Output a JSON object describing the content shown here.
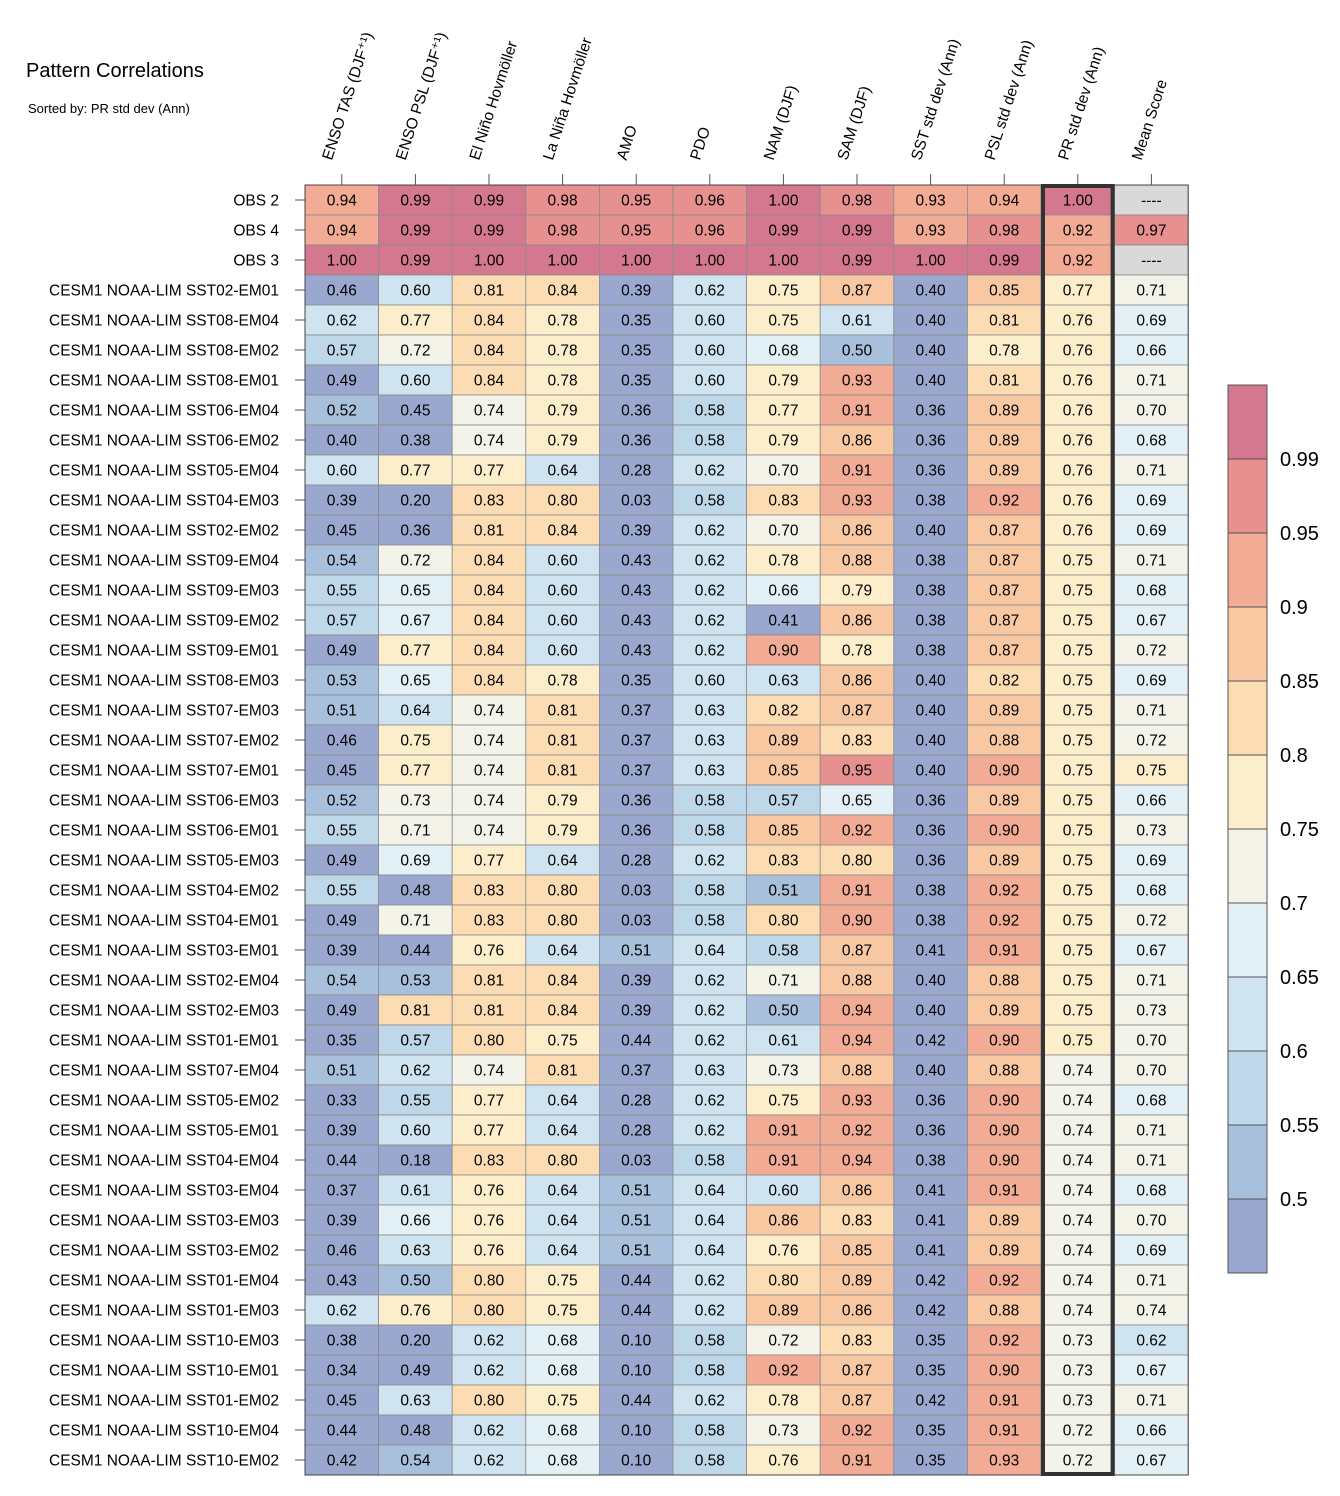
{
  "chart_data": {
    "type": "heatmap",
    "title": "Pattern Correlations",
    "subtitle": "Sorted by: PR std dev (Ann)",
    "columns": [
      "ENSO TAS (DJF⁺¹)",
      "ENSO PSL (DJF⁺¹)",
      "El Niño Hovmöller",
      "La Niña Hovmöller",
      "AMO",
      "PDO",
      "NAM (DJF)",
      "SAM (DJF)",
      "SST std dev (Ann)",
      "PSL std dev (Ann)",
      "PR std dev (Ann)",
      "Mean Score"
    ],
    "highlighted_column": "PR std dev (Ann)",
    "rows": [
      {
        "name": "OBS 2",
        "values": [
          "0.94",
          "0.99",
          "0.99",
          "0.98",
          "0.95",
          "0.96",
          "1.00",
          "0.98",
          "0.93",
          "0.94",
          "1.00",
          "----"
        ]
      },
      {
        "name": "OBS 4",
        "values": [
          "0.94",
          "0.99",
          "0.99",
          "0.98",
          "0.95",
          "0.96",
          "0.99",
          "0.99",
          "0.93",
          "0.98",
          "0.92",
          "0.97"
        ]
      },
      {
        "name": "OBS 3",
        "values": [
          "1.00",
          "0.99",
          "1.00",
          "1.00",
          "1.00",
          "1.00",
          "1.00",
          "0.99",
          "1.00",
          "0.99",
          "0.92",
          "----"
        ]
      },
      {
        "name": "CESM1 NOAA-LIM SST02-EM01",
        "values": [
          "0.46",
          "0.60",
          "0.81",
          "0.84",
          "0.39",
          "0.62",
          "0.75",
          "0.87",
          "0.40",
          "0.85",
          "0.77",
          "0.71"
        ]
      },
      {
        "name": "CESM1 NOAA-LIM SST08-EM04",
        "values": [
          "0.62",
          "0.77",
          "0.84",
          "0.78",
          "0.35",
          "0.60",
          "0.75",
          "0.61",
          "0.40",
          "0.81",
          "0.76",
          "0.69"
        ]
      },
      {
        "name": "CESM1 NOAA-LIM SST08-EM02",
        "values": [
          "0.57",
          "0.72",
          "0.84",
          "0.78",
          "0.35",
          "0.60",
          "0.68",
          "0.50",
          "0.40",
          "0.78",
          "0.76",
          "0.66"
        ]
      },
      {
        "name": "CESM1 NOAA-LIM SST08-EM01",
        "values": [
          "0.49",
          "0.60",
          "0.84",
          "0.78",
          "0.35",
          "0.60",
          "0.79",
          "0.93",
          "0.40",
          "0.81",
          "0.76",
          "0.71"
        ]
      },
      {
        "name": "CESM1 NOAA-LIM SST06-EM04",
        "values": [
          "0.52",
          "0.45",
          "0.74",
          "0.79",
          "0.36",
          "0.58",
          "0.77",
          "0.91",
          "0.36",
          "0.89",
          "0.76",
          "0.70"
        ]
      },
      {
        "name": "CESM1 NOAA-LIM SST06-EM02",
        "values": [
          "0.40",
          "0.38",
          "0.74",
          "0.79",
          "0.36",
          "0.58",
          "0.79",
          "0.86",
          "0.36",
          "0.89",
          "0.76",
          "0.68"
        ]
      },
      {
        "name": "CESM1 NOAA-LIM SST05-EM04",
        "values": [
          "0.60",
          "0.77",
          "0.77",
          "0.64",
          "0.28",
          "0.62",
          "0.70",
          "0.91",
          "0.36",
          "0.89",
          "0.76",
          "0.71"
        ]
      },
      {
        "name": "CESM1 NOAA-LIM SST04-EM03",
        "values": [
          "0.39",
          "0.20",
          "0.83",
          "0.80",
          "0.03",
          "0.58",
          "0.83",
          "0.93",
          "0.38",
          "0.92",
          "0.76",
          "0.69"
        ]
      },
      {
        "name": "CESM1 NOAA-LIM SST02-EM02",
        "values": [
          "0.45",
          "0.36",
          "0.81",
          "0.84",
          "0.39",
          "0.62",
          "0.70",
          "0.86",
          "0.40",
          "0.87",
          "0.76",
          "0.69"
        ]
      },
      {
        "name": "CESM1 NOAA-LIM SST09-EM04",
        "values": [
          "0.54",
          "0.72",
          "0.84",
          "0.60",
          "0.43",
          "0.62",
          "0.78",
          "0.88",
          "0.38",
          "0.87",
          "0.75",
          "0.71"
        ]
      },
      {
        "name": "CESM1 NOAA-LIM SST09-EM03",
        "values": [
          "0.55",
          "0.65",
          "0.84",
          "0.60",
          "0.43",
          "0.62",
          "0.66",
          "0.79",
          "0.38",
          "0.87",
          "0.75",
          "0.68"
        ]
      },
      {
        "name": "CESM1 NOAA-LIM SST09-EM02",
        "values": [
          "0.57",
          "0.67",
          "0.84",
          "0.60",
          "0.43",
          "0.62",
          "0.41",
          "0.86",
          "0.38",
          "0.87",
          "0.75",
          "0.67"
        ]
      },
      {
        "name": "CESM1 NOAA-LIM SST09-EM01",
        "values": [
          "0.49",
          "0.77",
          "0.84",
          "0.60",
          "0.43",
          "0.62",
          "0.90",
          "0.78",
          "0.38",
          "0.87",
          "0.75",
          "0.72"
        ]
      },
      {
        "name": "CESM1 NOAA-LIM SST08-EM03",
        "values": [
          "0.53",
          "0.65",
          "0.84",
          "0.78",
          "0.35",
          "0.60",
          "0.63",
          "0.86",
          "0.40",
          "0.82",
          "0.75",
          "0.69"
        ]
      },
      {
        "name": "CESM1 NOAA-LIM SST07-EM03",
        "values": [
          "0.51",
          "0.64",
          "0.74",
          "0.81",
          "0.37",
          "0.63",
          "0.82",
          "0.87",
          "0.40",
          "0.89",
          "0.75",
          "0.71"
        ]
      },
      {
        "name": "CESM1 NOAA-LIM SST07-EM02",
        "values": [
          "0.46",
          "0.75",
          "0.74",
          "0.81",
          "0.37",
          "0.63",
          "0.89",
          "0.83",
          "0.40",
          "0.88",
          "0.75",
          "0.72"
        ]
      },
      {
        "name": "CESM1 NOAA-LIM SST07-EM01",
        "values": [
          "0.45",
          "0.77",
          "0.74",
          "0.81",
          "0.37",
          "0.63",
          "0.85",
          "0.95",
          "0.40",
          "0.90",
          "0.75",
          "0.75"
        ]
      },
      {
        "name": "CESM1 NOAA-LIM SST06-EM03",
        "values": [
          "0.52",
          "0.73",
          "0.74",
          "0.79",
          "0.36",
          "0.58",
          "0.57",
          "0.65",
          "0.36",
          "0.89",
          "0.75",
          "0.66"
        ]
      },
      {
        "name": "CESM1 NOAA-LIM SST06-EM01",
        "values": [
          "0.55",
          "0.71",
          "0.74",
          "0.79",
          "0.36",
          "0.58",
          "0.85",
          "0.92",
          "0.36",
          "0.90",
          "0.75",
          "0.73"
        ]
      },
      {
        "name": "CESM1 NOAA-LIM SST05-EM03",
        "values": [
          "0.49",
          "0.69",
          "0.77",
          "0.64",
          "0.28",
          "0.62",
          "0.83",
          "0.80",
          "0.36",
          "0.89",
          "0.75",
          "0.69"
        ]
      },
      {
        "name": "CESM1 NOAA-LIM SST04-EM02",
        "values": [
          "0.55",
          "0.48",
          "0.83",
          "0.80",
          "0.03",
          "0.58",
          "0.51",
          "0.91",
          "0.38",
          "0.92",
          "0.75",
          "0.68"
        ]
      },
      {
        "name": "CESM1 NOAA-LIM SST04-EM01",
        "values": [
          "0.49",
          "0.71",
          "0.83",
          "0.80",
          "0.03",
          "0.58",
          "0.80",
          "0.90",
          "0.38",
          "0.92",
          "0.75",
          "0.72"
        ]
      },
      {
        "name": "CESM1 NOAA-LIM SST03-EM01",
        "values": [
          "0.39",
          "0.44",
          "0.76",
          "0.64",
          "0.51",
          "0.64",
          "0.58",
          "0.87",
          "0.41",
          "0.91",
          "0.75",
          "0.67"
        ]
      },
      {
        "name": "CESM1 NOAA-LIM SST02-EM04",
        "values": [
          "0.54",
          "0.53",
          "0.81",
          "0.84",
          "0.39",
          "0.62",
          "0.71",
          "0.88",
          "0.40",
          "0.88",
          "0.75",
          "0.71"
        ]
      },
      {
        "name": "CESM1 NOAA-LIM SST02-EM03",
        "values": [
          "0.49",
          "0.81",
          "0.81",
          "0.84",
          "0.39",
          "0.62",
          "0.50",
          "0.94",
          "0.40",
          "0.89",
          "0.75",
          "0.73"
        ]
      },
      {
        "name": "CESM1 NOAA-LIM SST01-EM01",
        "values": [
          "0.35",
          "0.57",
          "0.80",
          "0.75",
          "0.44",
          "0.62",
          "0.61",
          "0.94",
          "0.42",
          "0.90",
          "0.75",
          "0.70"
        ]
      },
      {
        "name": "CESM1 NOAA-LIM SST07-EM04",
        "values": [
          "0.51",
          "0.62",
          "0.74",
          "0.81",
          "0.37",
          "0.63",
          "0.73",
          "0.88",
          "0.40",
          "0.88",
          "0.74",
          "0.70"
        ]
      },
      {
        "name": "CESM1 NOAA-LIM SST05-EM02",
        "values": [
          "0.33",
          "0.55",
          "0.77",
          "0.64",
          "0.28",
          "0.62",
          "0.75",
          "0.93",
          "0.36",
          "0.90",
          "0.74",
          "0.68"
        ]
      },
      {
        "name": "CESM1 NOAA-LIM SST05-EM01",
        "values": [
          "0.39",
          "0.60",
          "0.77",
          "0.64",
          "0.28",
          "0.62",
          "0.91",
          "0.92",
          "0.36",
          "0.90",
          "0.74",
          "0.71"
        ]
      },
      {
        "name": "CESM1 NOAA-LIM SST04-EM04",
        "values": [
          "0.44",
          "0.18",
          "0.83",
          "0.80",
          "0.03",
          "0.58",
          "0.91",
          "0.94",
          "0.38",
          "0.90",
          "0.74",
          "0.71"
        ]
      },
      {
        "name": "CESM1 NOAA-LIM SST03-EM04",
        "values": [
          "0.37",
          "0.61",
          "0.76",
          "0.64",
          "0.51",
          "0.64",
          "0.60",
          "0.86",
          "0.41",
          "0.91",
          "0.74",
          "0.68"
        ]
      },
      {
        "name": "CESM1 NOAA-LIM SST03-EM03",
        "values": [
          "0.39",
          "0.66",
          "0.76",
          "0.64",
          "0.51",
          "0.64",
          "0.86",
          "0.83",
          "0.41",
          "0.89",
          "0.74",
          "0.70"
        ]
      },
      {
        "name": "CESM1 NOAA-LIM SST03-EM02",
        "values": [
          "0.46",
          "0.63",
          "0.76",
          "0.64",
          "0.51",
          "0.64",
          "0.76",
          "0.85",
          "0.41",
          "0.89",
          "0.74",
          "0.69"
        ]
      },
      {
        "name": "CESM1 NOAA-LIM SST01-EM04",
        "values": [
          "0.43",
          "0.50",
          "0.80",
          "0.75",
          "0.44",
          "0.62",
          "0.80",
          "0.89",
          "0.42",
          "0.92",
          "0.74",
          "0.71"
        ]
      },
      {
        "name": "CESM1 NOAA-LIM SST01-EM03",
        "values": [
          "0.62",
          "0.76",
          "0.80",
          "0.75",
          "0.44",
          "0.62",
          "0.89",
          "0.86",
          "0.42",
          "0.88",
          "0.74",
          "0.74"
        ]
      },
      {
        "name": "CESM1 NOAA-LIM SST10-EM03",
        "values": [
          "0.38",
          "0.20",
          "0.62",
          "0.68",
          "0.10",
          "0.58",
          "0.72",
          "0.83",
          "0.35",
          "0.92",
          "0.73",
          "0.62"
        ]
      },
      {
        "name": "CESM1 NOAA-LIM SST10-EM01",
        "values": [
          "0.34",
          "0.49",
          "0.62",
          "0.68",
          "0.10",
          "0.58",
          "0.92",
          "0.87",
          "0.35",
          "0.90",
          "0.73",
          "0.67"
        ]
      },
      {
        "name": "CESM1 NOAA-LIM SST01-EM02",
        "values": [
          "0.45",
          "0.63",
          "0.80",
          "0.75",
          "0.44",
          "0.62",
          "0.78",
          "0.87",
          "0.42",
          "0.91",
          "0.73",
          "0.71"
        ]
      },
      {
        "name": "CESM1 NOAA-LIM SST10-EM04",
        "values": [
          "0.44",
          "0.48",
          "0.62",
          "0.68",
          "0.10",
          "0.58",
          "0.73",
          "0.92",
          "0.35",
          "0.91",
          "0.72",
          "0.66"
        ]
      },
      {
        "name": "CESM1 NOAA-LIM SST10-EM02",
        "values": [
          "0.42",
          "0.54",
          "0.62",
          "0.68",
          "0.10",
          "0.58",
          "0.76",
          "0.91",
          "0.35",
          "0.93",
          "0.72",
          "0.67"
        ]
      }
    ],
    "colorbar": {
      "levels": [
        0.5,
        0.55,
        0.6,
        0.65,
        0.7,
        0.75,
        0.8,
        0.85,
        0.9,
        0.95,
        0.99
      ],
      "labels": [
        "0.5",
        "0.55",
        "0.6",
        "0.65",
        "0.7",
        "0.75",
        "0.8",
        "0.85",
        "0.9",
        "0.95",
        "0.99"
      ],
      "colors": [
        "#9aa8cf",
        "#a8c0dc",
        "#bed7e9",
        "#cfe4f0",
        "#e3f0f5",
        "#f3f3ea",
        "#fcedcb",
        "#fbdcb3",
        "#f8c8a3",
        "#f2ab94",
        "#e69090",
        "#d4788f"
      ],
      "missing_color": "#d9d9d9"
    }
  }
}
